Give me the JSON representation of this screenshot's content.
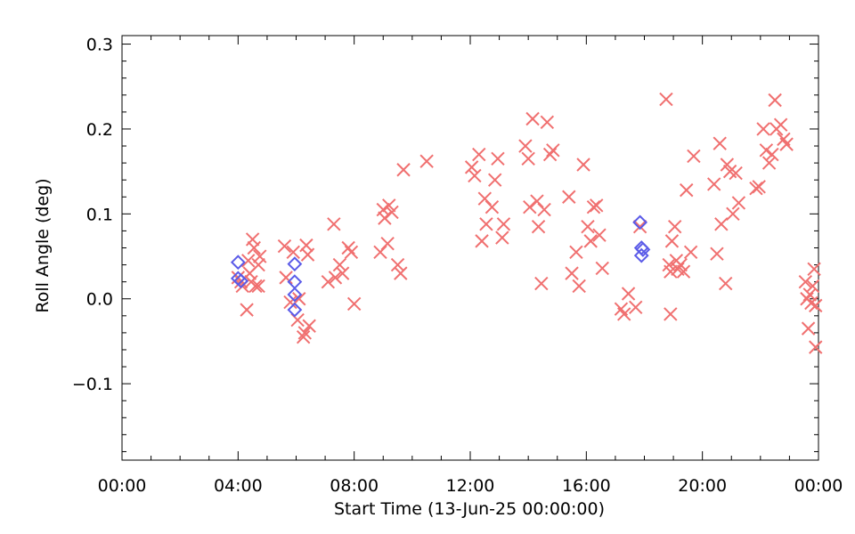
{
  "chart_data": {
    "type": "scatter",
    "title": "",
    "xlabel": "Start Time (13-Jun-25 00:00:00)",
    "ylabel": "Roll Angle (deg)",
    "xlim": [
      0,
      24
    ],
    "ylim": [
      -0.19,
      0.31
    ],
    "x_unit": "hours",
    "x_ticks": [
      {
        "value": 0,
        "label": "00:00"
      },
      {
        "value": 4,
        "label": "04:00"
      },
      {
        "value": 8,
        "label": "08:00"
      },
      {
        "value": 12,
        "label": "12:00"
      },
      {
        "value": 16,
        "label": "16:00"
      },
      {
        "value": 20,
        "label": "20:00"
      },
      {
        "value": 24,
        "label": "00:00"
      }
    ],
    "y_ticks": [
      {
        "value": -0.1,
        "label": "−0.1"
      },
      {
        "value": 0.0,
        "label": "0.0"
      },
      {
        "value": 0.1,
        "label": "0.1"
      },
      {
        "value": 0.2,
        "label": "0.2"
      },
      {
        "value": 0.3,
        "label": "0.3"
      }
    ],
    "grid": false,
    "series": [
      {
        "marker": "x",
        "color": "#f07070",
        "points": [
          [
            4.0,
            0.025
          ],
          [
            4.1,
            0.02
          ],
          [
            4.15,
            0.015
          ],
          [
            4.3,
            -0.013
          ],
          [
            4.35,
            0.045
          ],
          [
            4.4,
            0.03
          ],
          [
            4.45,
            0.02
          ],
          [
            4.5,
            0.07
          ],
          [
            4.55,
            0.06
          ],
          [
            4.6,
            0.015
          ],
          [
            4.7,
            0.04
          ],
          [
            4.75,
            0.05
          ],
          [
            4.7,
            0.015
          ],
          [
            5.6,
            0.062
          ],
          [
            5.65,
            0.025
          ],
          [
            5.8,
            -0.004
          ],
          [
            5.9,
            0.055
          ],
          [
            6.05,
            -0.025
          ],
          [
            6.1,
            0.0
          ],
          [
            6.25,
            -0.045
          ],
          [
            6.3,
            -0.04
          ],
          [
            6.35,
            0.063
          ],
          [
            6.4,
            0.052
          ],
          [
            6.45,
            -0.032
          ],
          [
            7.1,
            0.02
          ],
          [
            7.3,
            0.088
          ],
          [
            7.35,
            0.025
          ],
          [
            7.5,
            0.04
          ],
          [
            7.6,
            0.03
          ],
          [
            7.8,
            0.06
          ],
          [
            7.9,
            0.055
          ],
          [
            8.0,
            -0.006
          ],
          [
            8.9,
            0.055
          ],
          [
            9.0,
            0.105
          ],
          [
            9.05,
            0.095
          ],
          [
            9.15,
            0.065
          ],
          [
            9.2,
            0.11
          ],
          [
            9.3,
            0.102
          ],
          [
            9.5,
            0.04
          ],
          [
            9.6,
            0.03
          ],
          [
            9.7,
            0.152
          ],
          [
            10.5,
            0.162
          ],
          [
            12.05,
            0.155
          ],
          [
            12.15,
            0.145
          ],
          [
            12.3,
            0.17
          ],
          [
            12.4,
            0.068
          ],
          [
            12.5,
            0.118
          ],
          [
            12.55,
            0.088
          ],
          [
            12.75,
            0.108
          ],
          [
            12.85,
            0.14
          ],
          [
            12.95,
            0.165
          ],
          [
            13.1,
            0.072
          ],
          [
            13.15,
            0.088
          ],
          [
            13.9,
            0.18
          ],
          [
            14.0,
            0.165
          ],
          [
            14.05,
            0.108
          ],
          [
            14.15,
            0.212
          ],
          [
            14.3,
            0.115
          ],
          [
            14.35,
            0.085
          ],
          [
            14.45,
            0.018
          ],
          [
            14.55,
            0.105
          ],
          [
            14.65,
            0.208
          ],
          [
            14.75,
            0.17
          ],
          [
            14.85,
            0.175
          ],
          [
            15.4,
            0.12
          ],
          [
            15.5,
            0.03
          ],
          [
            15.65,
            0.055
          ],
          [
            15.75,
            0.015
          ],
          [
            15.9,
            0.158
          ],
          [
            16.05,
            0.085
          ],
          [
            16.15,
            0.068
          ],
          [
            16.25,
            0.108
          ],
          [
            16.35,
            0.11
          ],
          [
            16.45,
            0.075
          ],
          [
            16.55,
            0.036
          ],
          [
            17.2,
            -0.012
          ],
          [
            17.3,
            -0.018
          ],
          [
            17.45,
            0.006
          ],
          [
            17.7,
            -0.01
          ],
          [
            17.85,
            0.085
          ],
          [
            18.75,
            0.235
          ],
          [
            18.85,
            0.04
          ],
          [
            18.9,
            0.032
          ],
          [
            18.9,
            -0.018
          ],
          [
            18.95,
            0.068
          ],
          [
            19.05,
            0.085
          ],
          [
            19.1,
            0.045
          ],
          [
            19.15,
            0.035
          ],
          [
            19.25,
            0.04
          ],
          [
            19.35,
            0.032
          ],
          [
            19.45,
            0.128
          ],
          [
            19.6,
            0.055
          ],
          [
            19.7,
            0.168
          ],
          [
            20.4,
            0.135
          ],
          [
            20.5,
            0.053
          ],
          [
            20.6,
            0.183
          ],
          [
            20.65,
            0.088
          ],
          [
            20.8,
            0.018
          ],
          [
            20.85,
            0.158
          ],
          [
            20.95,
            0.15
          ],
          [
            21.05,
            0.1
          ],
          [
            21.15,
            0.148
          ],
          [
            21.25,
            0.113
          ],
          [
            21.85,
            0.13
          ],
          [
            21.95,
            0.132
          ],
          [
            22.1,
            0.2
          ],
          [
            22.2,
            0.175
          ],
          [
            22.3,
            0.16
          ],
          [
            22.4,
            0.17
          ],
          [
            22.5,
            0.234
          ],
          [
            22.55,
            0.2
          ],
          [
            22.7,
            0.205
          ],
          [
            22.8,
            0.188
          ],
          [
            22.9,
            0.182
          ],
          [
            23.55,
            0.02
          ],
          [
            23.6,
            0.0
          ],
          [
            23.65,
            -0.035
          ],
          [
            23.7,
            0.005
          ],
          [
            23.75,
            -0.005
          ],
          [
            23.8,
            0.015
          ],
          [
            23.85,
            0.035
          ],
          [
            23.9,
            -0.008
          ],
          [
            23.9,
            -0.057
          ]
        ]
      },
      {
        "marker": "diamond",
        "color": "#5b5be8",
        "points": [
          [
            4.0,
            0.043
          ],
          [
            4.0,
            0.024
          ],
          [
            4.1,
            0.021
          ],
          [
            5.95,
            0.041
          ],
          [
            5.95,
            0.02
          ],
          [
            5.95,
            0.005
          ],
          [
            5.95,
            -0.013
          ],
          [
            17.85,
            0.09
          ],
          [
            17.9,
            0.06
          ],
          [
            17.95,
            0.058
          ],
          [
            17.9,
            0.051
          ]
        ]
      }
    ]
  }
}
